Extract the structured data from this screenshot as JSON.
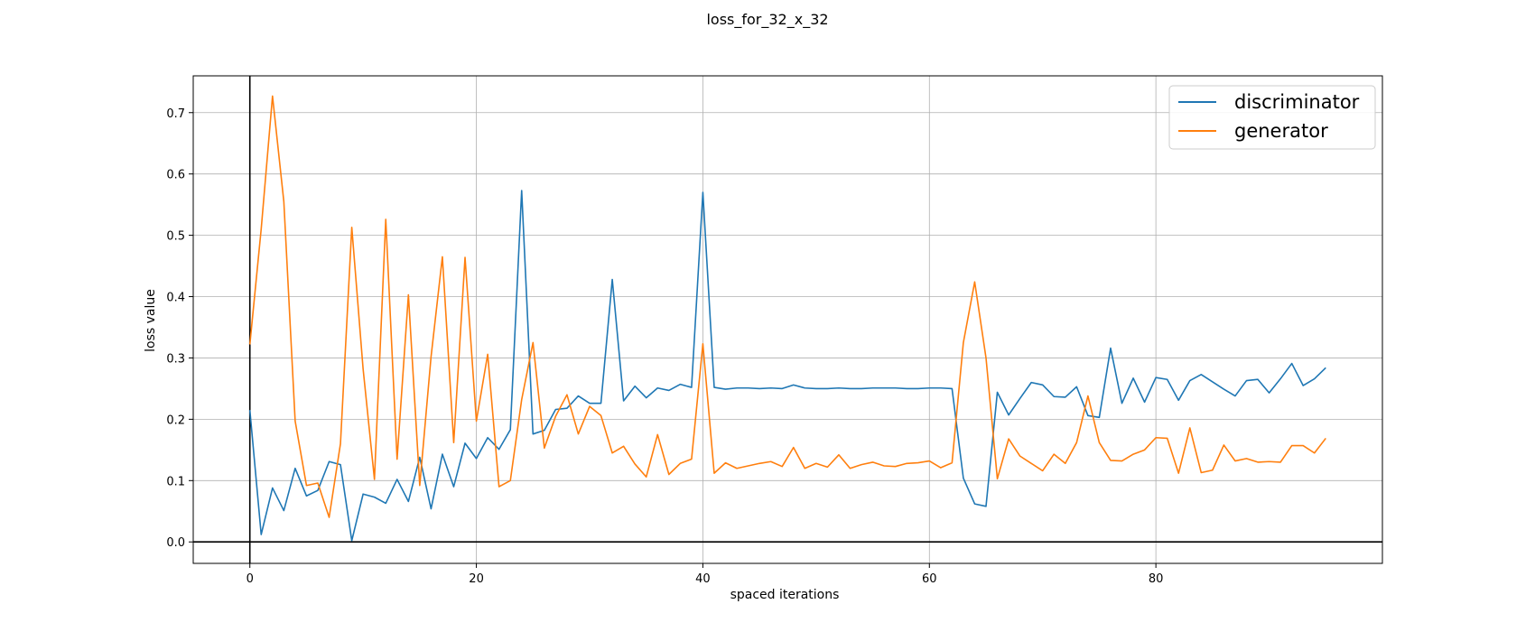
{
  "chart_data": {
    "type": "line",
    "title": "loss_for_32_x_32",
    "xlabel": "spaced iterations",
    "ylabel": "loss value",
    "xlim": [
      -5,
      100
    ],
    "ylim": [
      -0.035,
      0.76
    ],
    "xticks": [
      0,
      20,
      40,
      60,
      80
    ],
    "yticks": [
      0.0,
      0.1,
      0.2,
      0.3,
      0.4,
      0.5,
      0.6,
      0.7
    ],
    "grid": true,
    "zero_lines": true,
    "legend_position": "top-right",
    "x": [
      0,
      1,
      2,
      3,
      4,
      5,
      6,
      7,
      8,
      9,
      10,
      11,
      12,
      13,
      14,
      15,
      16,
      17,
      18,
      19,
      20,
      21,
      22,
      23,
      24,
      25,
      26,
      27,
      28,
      29,
      30,
      31,
      32,
      33,
      34,
      35,
      36,
      37,
      38,
      39,
      40,
      41,
      42,
      43,
      44,
      45,
      46,
      47,
      48,
      49,
      50,
      51,
      52,
      53,
      54,
      55,
      56,
      57,
      58,
      59,
      60,
      61,
      62,
      63,
      64,
      65,
      66,
      67,
      68,
      69,
      70,
      71,
      72,
      73,
      74,
      75,
      76,
      77,
      78,
      79,
      80,
      81,
      82,
      83,
      84,
      85,
      86,
      87,
      88,
      89,
      90,
      91,
      92,
      93,
      94,
      95
    ],
    "series": [
      {
        "name": "discriminator",
        "color": "#1f77b4",
        "values": [
          0.215,
          0.012,
          0.088,
          0.051,
          0.12,
          0.075,
          0.084,
          0.131,
          0.126,
          0.002,
          0.078,
          0.073,
          0.063,
          0.102,
          0.066,
          0.138,
          0.054,
          0.143,
          0.09,
          0.161,
          0.136,
          0.17,
          0.151,
          0.183,
          0.573,
          0.176,
          0.182,
          0.216,
          0.218,
          0.238,
          0.226,
          0.226,
          0.428,
          0.23,
          0.254,
          0.235,
          0.251,
          0.247,
          0.257,
          0.252,
          0.57,
          0.252,
          0.249,
          0.251,
          0.251,
          0.25,
          0.251,
          0.25,
          0.256,
          0.251,
          0.25,
          0.25,
          0.251,
          0.25,
          0.25,
          0.251,
          0.251,
          0.251,
          0.25,
          0.25,
          0.251,
          0.251,
          0.25,
          0.104,
          0.062,
          0.058,
          0.244,
          0.207,
          0.234,
          0.26,
          0.256,
          0.237,
          0.236,
          0.253,
          0.206,
          0.203,
          0.316,
          0.226,
          0.267,
          0.228,
          0.268,
          0.265,
          0.231,
          0.263,
          0.273,
          0.261,
          0.249,
          0.238,
          0.263,
          0.265,
          0.243,
          0.266,
          0.291,
          0.255,
          0.266,
          0.284
        ]
      },
      {
        "name": "generator",
        "color": "#ff7f0e",
        "values": [
          0.322,
          0.51,
          0.727,
          0.555,
          0.197,
          0.092,
          0.096,
          0.04,
          0.16,
          0.513,
          0.282,
          0.102,
          0.526,
          0.135,
          0.403,
          0.092,
          0.302,
          0.465,
          0.162,
          0.464,
          0.197,
          0.306,
          0.09,
          0.1,
          0.232,
          0.325,
          0.153,
          0.205,
          0.24,
          0.176,
          0.221,
          0.206,
          0.145,
          0.156,
          0.127,
          0.106,
          0.175,
          0.11,
          0.128,
          0.135,
          0.323,
          0.112,
          0.129,
          0.12,
          0.124,
          0.128,
          0.131,
          0.123,
          0.154,
          0.12,
          0.128,
          0.122,
          0.142,
          0.12,
          0.126,
          0.13,
          0.124,
          0.123,
          0.128,
          0.129,
          0.132,
          0.121,
          0.129,
          0.325,
          0.424,
          0.3,
          0.103,
          0.168,
          0.14,
          0.128,
          0.116,
          0.143,
          0.128,
          0.162,
          0.238,
          0.162,
          0.133,
          0.132,
          0.143,
          0.15,
          0.17,
          0.169,
          0.112,
          0.186,
          0.113,
          0.117,
          0.158,
          0.132,
          0.136,
          0.13,
          0.131,
          0.13,
          0.157,
          0.157,
          0.145,
          0.169
        ]
      }
    ]
  }
}
